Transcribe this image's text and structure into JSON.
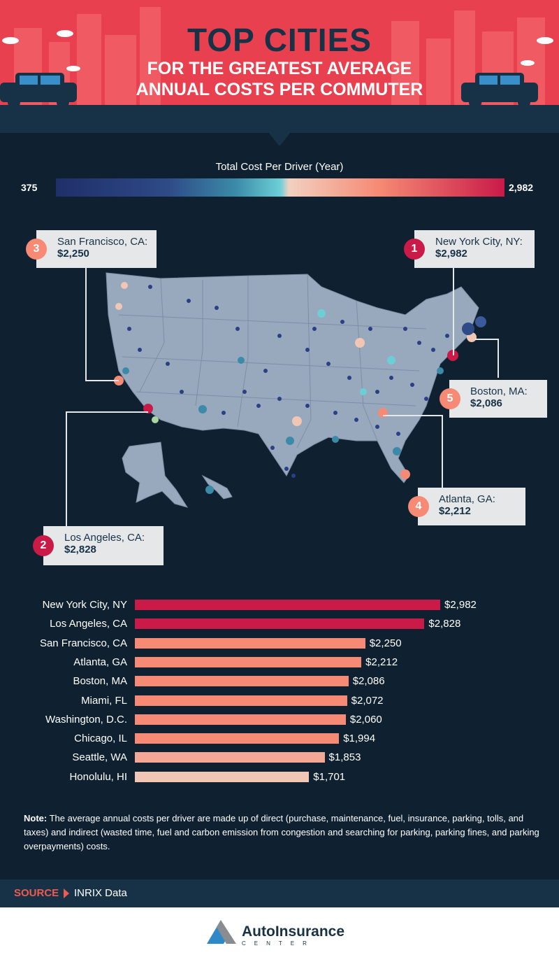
{
  "header": {
    "title_main": "TOP CITIES",
    "title_sub1": "FOR THE GREATEST AVERAGE",
    "title_sub2": "ANNUAL COSTS PER COMMUTER"
  },
  "legend": {
    "title": "Total Cost Per Driver (Year)",
    "min": "375",
    "max": "2,982"
  },
  "callouts": [
    {
      "rank": "1",
      "city": "New York City, NY:",
      "value": "$2,982"
    },
    {
      "rank": "2",
      "city": "Los Angeles, CA:",
      "value": "$2,828"
    },
    {
      "rank": "3",
      "city": "San Francisco, CA:",
      "value": "$2,250"
    },
    {
      "rank": "4",
      "city": "Atlanta, GA:",
      "value": "$2,212"
    },
    {
      "rank": "5",
      "city": "Boston, MA:",
      "value": "$2,086"
    }
  ],
  "colors": {
    "header_red": "#e8404e",
    "navy": "#173247",
    "background": "#0f2030",
    "bar_top": "#c91a48",
    "bar_mid": "#f68a74",
    "bar_light": "#f4a795",
    "bar_lightest": "#f2c6b4"
  },
  "chart_data": {
    "type": "bar",
    "orientation": "horizontal",
    "categories": [
      "New York City, NY",
      "Los Angeles, CA",
      "San Francisco, CA",
      "Atlanta, GA",
      "Boston, MA",
      "Miami, FL",
      "Washington, D.C.",
      "Chicago, IL",
      "Seattle, WA",
      "Honolulu, HI"
    ],
    "values": [
      2982,
      2828,
      2250,
      2212,
      2086,
      2072,
      2060,
      1994,
      1853,
      1701
    ],
    "value_labels": [
      "$2,982",
      "$2,828",
      "$2,250",
      "$2,212",
      "$2,086",
      "$2,072",
      "$2,060",
      "$1,994",
      "$1,853",
      "$1,701"
    ],
    "bar_colors": [
      "#c91a48",
      "#c91a48",
      "#f68a74",
      "#f68a74",
      "#f68a74",
      "#f68a74",
      "#f68a74",
      "#f68a74",
      "#f4a795",
      "#f2c6b4"
    ],
    "title": "",
    "xlabel": "",
    "ylabel": ""
  },
  "note": {
    "label": "Note:",
    "text": " The average annual costs per driver are made up of direct (purchase, maintenance, fuel, insurance, parking, tolls, and taxes) and indirect (wasted time, fuel and carbon emission from congestion and searching for parking, parking fines, and parking overpayments) costs."
  },
  "source": {
    "label": "SOURCE",
    "text": "INRIX Data"
  },
  "brand": {
    "name": "AutoInsurance",
    "sub": "CENTER"
  }
}
